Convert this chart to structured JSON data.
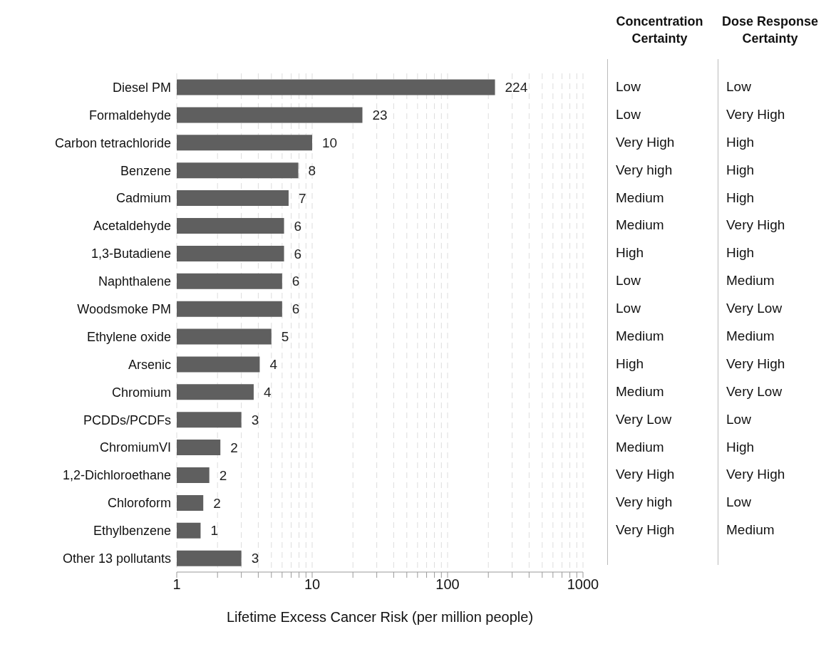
{
  "chart_data": [
    {
      "type": "bar",
      "orientation": "horizontal",
      "log": "x",
      "xlabel": "Lifetime Excess Cancer Risk (per million people)",
      "categories": [
        "Diesel PM",
        "Formaldehyde",
        "Carbon tetrachloride",
        "Benzene",
        "Cadmium",
        "Acetaldehyde",
        "1,3-Butadiene",
        "Naphthalene",
        "Woodsmoke PM",
        "Ethylene oxide",
        "Arsenic",
        "Chromium",
        "PCDDs/PCDFs",
        "ChromiumVI",
        "1,2-Dichloroethane",
        "Chloroform",
        "Ethylbenzene",
        "Other 13 pollutants"
      ],
      "values": [
        224,
        23.5,
        10,
        7.9,
        6.7,
        6.2,
        6.2,
        6,
        6,
        5,
        4.1,
        3.7,
        3,
        2.1,
        1.74,
        1.57,
        1.5,
        3
      ],
      "value_labels": [
        "224",
        "23",
        "10",
        "8",
        "7",
        "6",
        "6",
        "6",
        "6",
        "5",
        "4",
        "4",
        "3",
        "2",
        "2",
        "2",
        "1",
        "3"
      ],
      "color": "#5f5f5f",
      "xlim": [
        1,
        1000
      ],
      "xticks": [
        1,
        {
          "value": 2,
          "label": null
        },
        {
          "value": 3,
          "label": null
        },
        {
          "value": 4,
          "label": null
        },
        {
          "value": 5,
          "label": null
        },
        {
          "value": 6,
          "label": null
        },
        {
          "value": 7,
          "label": null
        },
        {
          "value": 8,
          "label": null
        },
        {
          "value": 9,
          "label": null
        },
        10,
        {
          "value": 20,
          "label": null
        },
        {
          "value": 30,
          "label": null
        },
        {
          "value": 40,
          "label": null
        },
        {
          "value": 50,
          "label": null
        },
        {
          "value": 60,
          "label": null
        },
        {
          "value": 70,
          "label": null
        },
        {
          "value": 80,
          "label": null
        },
        {
          "value": 90,
          "label": null
        },
        100,
        {
          "value": 200,
          "label": null
        },
        {
          "value": 300,
          "label": null
        },
        {
          "value": 400,
          "label": null
        },
        {
          "value": 500,
          "label": null
        },
        {
          "value": 600,
          "label": null
        },
        {
          "value": 700,
          "label": null
        },
        {
          "value": 800,
          "label": null
        },
        {
          "value": 900,
          "label": null
        },
        1000
      ],
      "grid": "x"
    },
    {
      "type": "other",
      "title": "Concentration Certainty",
      "annotations": [
        "Low",
        "Low",
        "Very High",
        "Very high",
        "Medium",
        "Medium",
        "High",
        "Low",
        "Low",
        "Medium",
        "High",
        "Medium",
        "Very Low",
        "Medium",
        "Very High",
        "Very high",
        "Very High"
      ]
    },
    {
      "type": "other",
      "title": "Dose Response Certainty",
      "annotations": [
        "Low",
        "Very High",
        "High",
        "High",
        "High",
        "Very High",
        "High",
        "Medium",
        "Very Low",
        "Medium",
        "Very High",
        "Very Low",
        "Low",
        "High",
        "Very High",
        "Low",
        "Medium"
      ]
    }
  ]
}
